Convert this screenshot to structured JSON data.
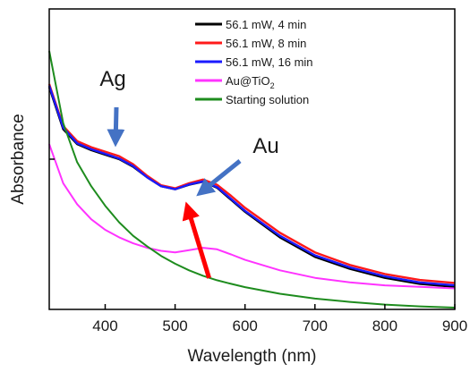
{
  "chart_data": {
    "type": "line",
    "xlabel": "Wavelength (nm)",
    "ylabel": "Absorbance",
    "xlim": [
      320,
      900
    ],
    "ylim": [
      0,
      1.0
    ],
    "x_ticks": [
      400,
      500,
      600,
      700,
      800,
      900
    ],
    "y_tick_labels": false,
    "grid": false,
    "legend": {
      "placement": "top-right",
      "entries": [
        {
          "label": "56.1 mW, 4 min",
          "color": "#000000"
        },
        {
          "label": "56.1 mW, 8 min",
          "color": "#ff1a1a"
        },
        {
          "label": "56.1 mW, 16 min",
          "color": "#1a1aff"
        },
        {
          "label": "Au@TiO",
          "subscript": "2",
          "color": "#ff33ff"
        },
        {
          "label": "Starting solution",
          "color": "#1e8c1e"
        }
      ]
    },
    "annotations": [
      {
        "text": "Ag",
        "arrow_color": "#4472c4",
        "target": [
          415,
          0.54
        ]
      },
      {
        "text": "Au",
        "arrow_color": "#4472c4",
        "target": [
          530,
          0.36
        ]
      },
      {
        "text": "",
        "arrow_color": "#ff0000",
        "target": [
          528,
          0.36
        ],
        "from": [
          555,
          0.17
        ]
      }
    ],
    "series": [
      {
        "color": "#000000",
        "x": [
          320,
          340,
          360,
          380,
          400,
          420,
          440,
          460,
          480,
          500,
          520,
          540,
          560,
          580,
          600,
          650,
          700,
          750,
          800,
          850,
          900
        ],
        "y": [
          0.74,
          0.6,
          0.55,
          0.53,
          0.515,
          0.5,
          0.475,
          0.44,
          0.41,
          0.4,
          0.415,
          0.425,
          0.405,
          0.365,
          0.325,
          0.24,
          0.175,
          0.135,
          0.105,
          0.085,
          0.075
        ]
      },
      {
        "color": "#ff1a1a",
        "x": [
          320,
          340,
          360,
          380,
          400,
          420,
          440,
          460,
          480,
          500,
          520,
          540,
          560,
          580,
          600,
          650,
          700,
          750,
          800,
          850,
          900
        ],
        "y": [
          0.75,
          0.61,
          0.56,
          0.54,
          0.525,
          0.51,
          0.483,
          0.445,
          0.413,
          0.403,
          0.42,
          0.432,
          0.415,
          0.378,
          0.338,
          0.255,
          0.19,
          0.148,
          0.118,
          0.098,
          0.088
        ]
      },
      {
        "color": "#1a1aff",
        "x": [
          320,
          340,
          360,
          380,
          400,
          420,
          440,
          460,
          480,
          500,
          520,
          540,
          560,
          580,
          600,
          650,
          700,
          750,
          800,
          850,
          900
        ],
        "y": [
          0.745,
          0.605,
          0.553,
          0.533,
          0.518,
          0.502,
          0.477,
          0.44,
          0.41,
          0.4,
          0.416,
          0.426,
          0.407,
          0.368,
          0.328,
          0.245,
          0.18,
          0.14,
          0.11,
          0.09,
          0.08
        ]
      },
      {
        "color": "#ff33ff",
        "x": [
          320,
          340,
          360,
          380,
          400,
          420,
          440,
          460,
          480,
          500,
          520,
          540,
          560,
          580,
          600,
          650,
          700,
          750,
          800,
          850,
          900
        ],
        "y": [
          0.55,
          0.42,
          0.35,
          0.3,
          0.265,
          0.24,
          0.22,
          0.205,
          0.195,
          0.19,
          0.197,
          0.205,
          0.2,
          0.183,
          0.165,
          0.13,
          0.105,
          0.09,
          0.08,
          0.075,
          0.07
        ]
      },
      {
        "color": "#1e8c1e",
        "x": [
          320,
          340,
          360,
          380,
          400,
          420,
          440,
          460,
          480,
          500,
          520,
          540,
          560,
          580,
          600,
          650,
          700,
          750,
          800,
          850,
          900
        ],
        "y": [
          0.86,
          0.62,
          0.49,
          0.41,
          0.345,
          0.29,
          0.245,
          0.21,
          0.178,
          0.152,
          0.13,
          0.112,
          0.097,
          0.085,
          0.074,
          0.052,
          0.036,
          0.025,
          0.016,
          0.01,
          0.006
        ]
      }
    ]
  }
}
